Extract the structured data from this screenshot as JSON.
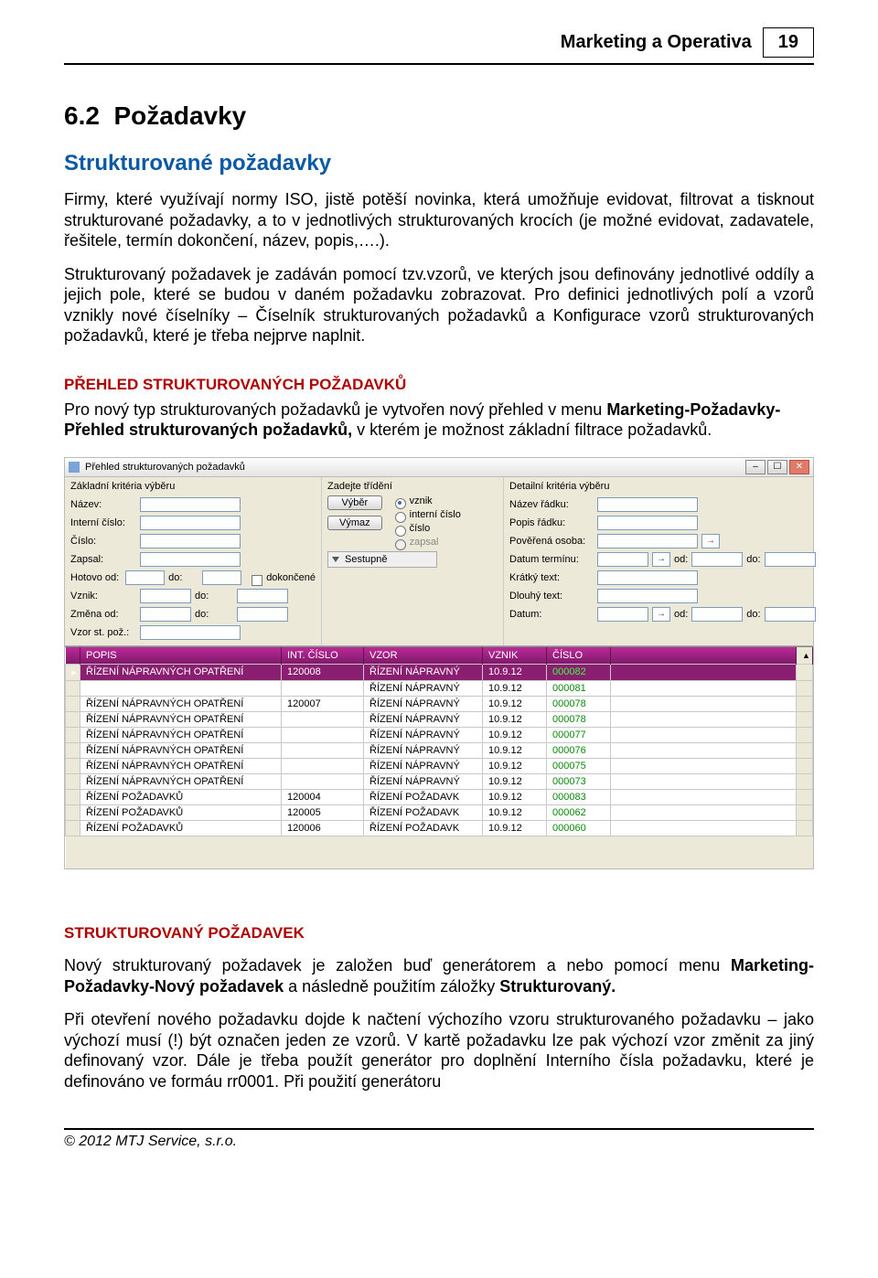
{
  "header": {
    "title": "Marketing a Operativa",
    "page_number": "19"
  },
  "section": {
    "num": "6.2",
    "name": "Požadavky"
  },
  "h2": "Strukturované požadavky",
  "para1": "Firmy, které využívají normy ISO, jistě potěší novinka, která umožňuje evidovat, filtrovat a tisknout strukturované požadavky, a to v jednotlivých strukturovaných krocích (je možné evidovat, zadavatele, řešitele, termín dokončení, název, popis,….).",
  "para2": "Strukturovaný požadavek je zadáván pomocí tzv.vzorů, ve kterých jsou definovány jednotlivé oddíly a jejich pole, které se budou v daném požadavku zobrazovat. Pro definici jednotlivých polí a vzorů vznikly nové číselníky – Číselník strukturovaných požadavků a Konfigurace vzorů strukturovaných požadavků, které je třeba nejprve naplnit.",
  "prehled": {
    "heading": "PŘEHLED STRUKTUROVANÝCH POŽADAVKŮ",
    "line1a": "Pro nový typ strukturovaných požadavků je vytvořen nový přehled v menu ",
    "line1b_bold": "Marketing-Požadavky-Přehled strukturovaných požadavků,",
    "line1c": " v kterém je možnost základní filtrace požadavků."
  },
  "window": {
    "title": "Přehled strukturovaných požadavků",
    "panel": {
      "col1_head": "Základní kritéria výběru",
      "col2_head": "Zadejte třídění",
      "col3_head": "Detailní kritéria výběru",
      "labels": {
        "nazev": "Název:",
        "interni": "Interní číslo:",
        "cislo": "Číslo:",
        "zapsal": "Zapsal:",
        "hotovo_od": "Hotovo od:",
        "vznik": "Vznik:",
        "zmena_od": "Změna od:",
        "vzor_st": "Vzor st. pož.:",
        "do": "do:",
        "od": "od:",
        "dokoncene": "dokončené",
        "vyber": "Výběr",
        "vymaz": "Výmaz",
        "r_vznik": "vznik",
        "r_interni": "interní číslo",
        "r_cislo": "číslo",
        "r_zapsal": "zapsal",
        "sort": "Sestupně",
        "det_nazev": "Název řádku:",
        "det_popis": "Popis řádku:",
        "det_osoba": "Pověřená osoba:",
        "det_termin": "Datum termínu:",
        "det_kratky": "Krátký text:",
        "det_dlouhy": "Dlouhý text:",
        "det_datum": "Datum:"
      }
    },
    "grid": {
      "columns": [
        "POPIS",
        "INT. ČÍSLO",
        "VZOR",
        "VZNIK",
        "ČÍSLO"
      ],
      "col_widths": [
        "220px",
        "90px",
        "130px",
        "70px",
        "70px"
      ],
      "rows": [
        [
          "ŘÍZENÍ NÁPRAVNÝCH OPATŘENÍ",
          "120008",
          "ŘÍZENÍ NÁPRAVNÝ",
          "10.9.12",
          "000082"
        ],
        [
          "",
          "",
          "ŘÍZENÍ NÁPRAVNÝ",
          "10.9.12",
          "000081"
        ],
        [
          "ŘÍZENÍ NÁPRAVNÝCH OPATŘENÍ",
          "120007",
          "ŘÍZENÍ NÁPRAVNÝ",
          "10.9.12",
          "000078"
        ],
        [
          "ŘÍZENÍ NÁPRAVNÝCH OPATŘENÍ",
          "",
          "ŘÍZENÍ NÁPRAVNÝ",
          "10.9.12",
          "000078"
        ],
        [
          "ŘÍZENÍ NÁPRAVNÝCH OPATŘENÍ",
          "",
          "ŘÍZENÍ NÁPRAVNÝ",
          "10.9.12",
          "000077"
        ],
        [
          "ŘÍZENÍ NÁPRAVNÝCH OPATŘENÍ",
          "",
          "ŘÍZENÍ NÁPRAVNÝ",
          "10.9.12",
          "000076"
        ],
        [
          "ŘÍZENÍ NÁPRAVNÝCH OPATŘENÍ",
          "",
          "ŘÍZENÍ NÁPRAVNÝ",
          "10.9.12",
          "000075"
        ],
        [
          "ŘÍZENÍ NÁPRAVNÝCH OPATŘENÍ",
          "",
          "ŘÍZENÍ NÁPRAVNÝ",
          "10.9.12",
          "000073"
        ],
        [
          "ŘÍZENÍ POŽADAVKŮ",
          "120004",
          "ŘÍZENÍ POŽADAVK",
          "10.9.12",
          "000083"
        ],
        [
          "ŘÍZENÍ POŽADAVKŮ",
          "120005",
          "ŘÍZENÍ POŽADAVK",
          "10.9.12",
          "000062"
        ],
        [
          "ŘÍZENÍ POŽADAVKŮ",
          "120006",
          "ŘÍZENÍ POŽADAVK",
          "10.9.12",
          "000060"
        ]
      ],
      "selected_row": 0
    }
  },
  "struk": {
    "heading": "STRUKTUROVANÝ POŽADAVEK",
    "p1a": "Nový strukturovaný požadavek je založen buď generátorem a nebo pomocí menu ",
    "p1b_bold": "Marketing-Požadavky-Nový požadavek",
    "p1c": " a následně použitím záložky ",
    "p1d_bold": "Strukturovaný.",
    "p2": "Při otevření nového požadavku dojde k načtení výchozího vzoru strukturovaného požadavku – jako výchozí musí (!) být označen jeden ze vzorů. V kartě požadavku lze pak výchozí vzor změnit za jiný definovaný vzor. Dále je třeba použít generátor pro doplnění Interního čísla požadavku, které je definováno ve formáu rr0001. Při použití generátoru"
  },
  "footer": "© 2012 MTJ Service, s.r.o."
}
